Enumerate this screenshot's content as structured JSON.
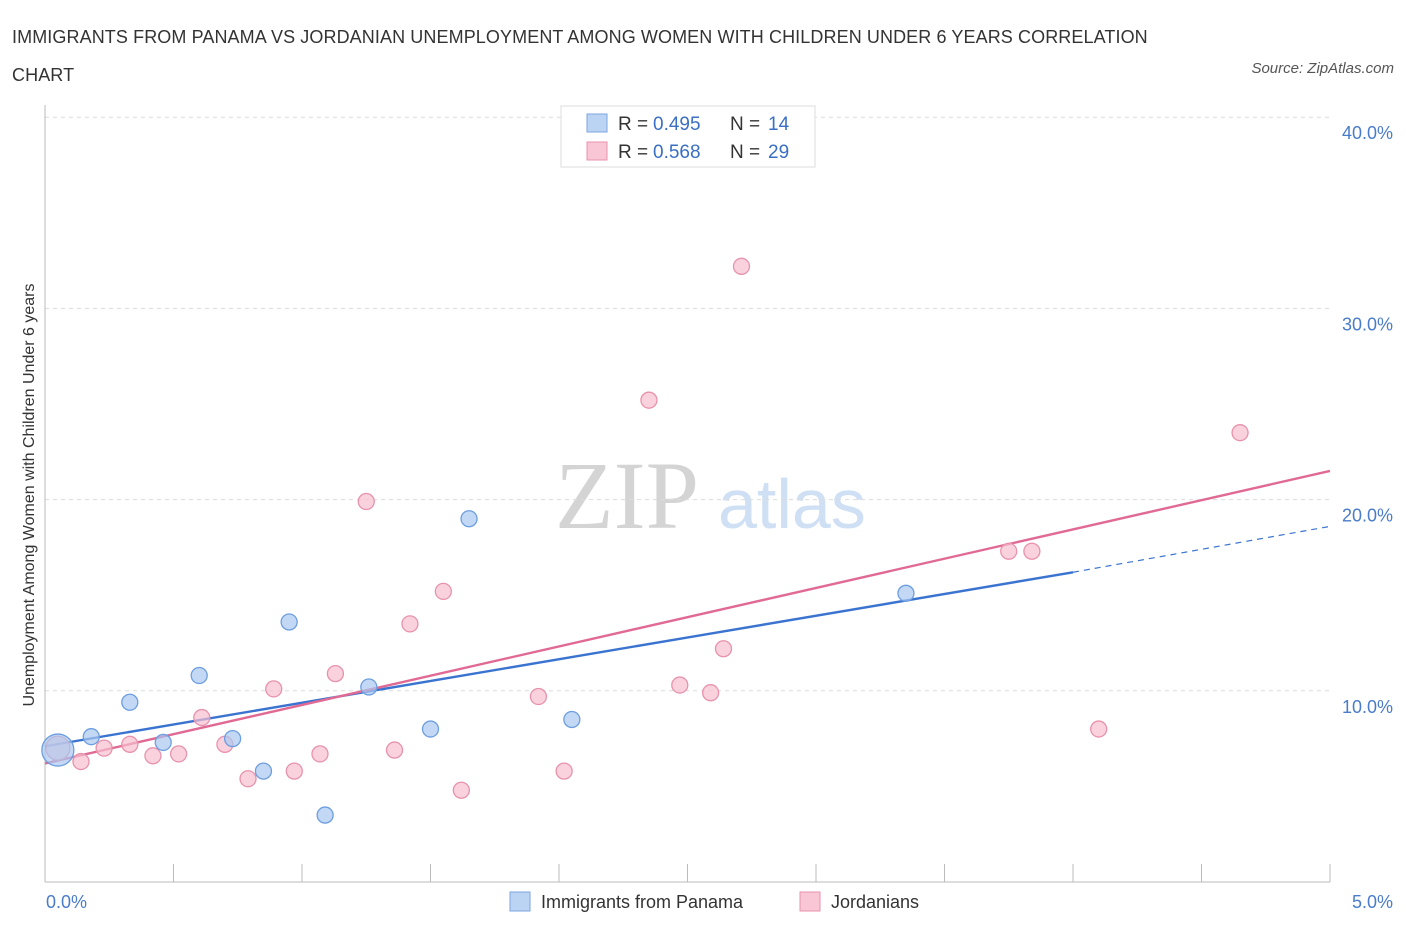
{
  "chart_data": {
    "type": "scatter",
    "title": "IMMIGRANTS FROM PANAMA VS JORDANIAN UNEMPLOYMENT AMONG WOMEN WITH CHILDREN UNDER 6 YEARS CORRELATION CHART",
    "source": "Source: ZipAtlas.com",
    "ylabel": "Unemployment Among Women with Children Under 6 years",
    "xlim": [
      0,
      5
    ],
    "ylim": [
      0,
      40
    ],
    "x_tick_labels": [
      "0.0%",
      "5.0%"
    ],
    "y_ticks": [
      10,
      20,
      30,
      40
    ],
    "y_tick_labels": [
      "10.0%",
      "20.0%",
      "30.0%",
      "40.0%"
    ],
    "grid": true,
    "legend": {
      "position": "top-center",
      "entries": [
        {
          "r_label": "R = ",
          "r_value": "0.495",
          "n_label": "N = ",
          "n_value": "14"
        },
        {
          "r_label": "R = ",
          "r_value": "0.568",
          "n_label": "N = ",
          "n_value": "29"
        }
      ]
    },
    "watermark": {
      "zip": "ZIP",
      "atlas": "atlas"
    },
    "series": [
      {
        "name": "Immigrants from Panama",
        "color": "#a9c8f0",
        "stroke": "#6d9ee0",
        "line_color": "#3a74d0",
        "trend": {
          "x0": 0,
          "y0": 7.1,
          "x1": 4.0,
          "y1": 16.2,
          "dash_to_x": 5.0,
          "dash_to_y": 18.6
        },
        "points": [
          {
            "x": 0.05,
            "y": 6.9,
            "r": 16
          },
          {
            "x": 0.18,
            "y": 7.6
          },
          {
            "x": 0.33,
            "y": 9.4
          },
          {
            "x": 0.46,
            "y": 7.3
          },
          {
            "x": 0.6,
            "y": 10.8
          },
          {
            "x": 0.73,
            "y": 7.5
          },
          {
            "x": 0.85,
            "y": 5.8
          },
          {
            "x": 0.95,
            "y": 13.6
          },
          {
            "x": 1.09,
            "y": 3.5
          },
          {
            "x": 1.26,
            "y": 10.2
          },
          {
            "x": 1.5,
            "y": 8.0
          },
          {
            "x": 1.65,
            "y": 19.0
          },
          {
            "x": 2.05,
            "y": 8.5
          },
          {
            "x": 3.35,
            "y": 15.1
          }
        ]
      },
      {
        "name": "Jordanians",
        "color": "#f7bfd0",
        "stroke": "#e892ac",
        "line_color": "#e06a94",
        "trend": {
          "x0": 0,
          "y0": 6.2,
          "x1": 5.0,
          "y1": 21.5
        },
        "points": [
          {
            "x": 0.05,
            "y": 7.0,
            "r": 12
          },
          {
            "x": 0.14,
            "y": 6.3
          },
          {
            "x": 0.23,
            "y": 7.0
          },
          {
            "x": 0.33,
            "y": 7.2
          },
          {
            "x": 0.42,
            "y": 6.6
          },
          {
            "x": 0.52,
            "y": 6.7
          },
          {
            "x": 0.61,
            "y": 8.6
          },
          {
            "x": 0.7,
            "y": 7.2
          },
          {
            "x": 0.79,
            "y": 5.4
          },
          {
            "x": 0.89,
            "y": 10.1
          },
          {
            "x": 0.97,
            "y": 5.8
          },
          {
            "x": 1.07,
            "y": 6.7
          },
          {
            "x": 1.13,
            "y": 10.9
          },
          {
            "x": 1.25,
            "y": 19.9
          },
          {
            "x": 1.36,
            "y": 6.9
          },
          {
            "x": 1.42,
            "y": 13.5
          },
          {
            "x": 1.55,
            "y": 15.2
          },
          {
            "x": 1.62,
            "y": 4.8
          },
          {
            "x": 1.92,
            "y": 9.7
          },
          {
            "x": 2.02,
            "y": 5.8
          },
          {
            "x": 2.35,
            "y": 25.2
          },
          {
            "x": 2.47,
            "y": 10.3
          },
          {
            "x": 2.59,
            "y": 9.9
          },
          {
            "x": 2.64,
            "y": 12.2
          },
          {
            "x": 2.71,
            "y": 32.2
          },
          {
            "x": 3.75,
            "y": 17.3
          },
          {
            "x": 3.84,
            "y": 17.3
          },
          {
            "x": 4.1,
            "y": 8.0
          },
          {
            "x": 4.65,
            "y": 23.5
          }
        ]
      }
    ]
  }
}
